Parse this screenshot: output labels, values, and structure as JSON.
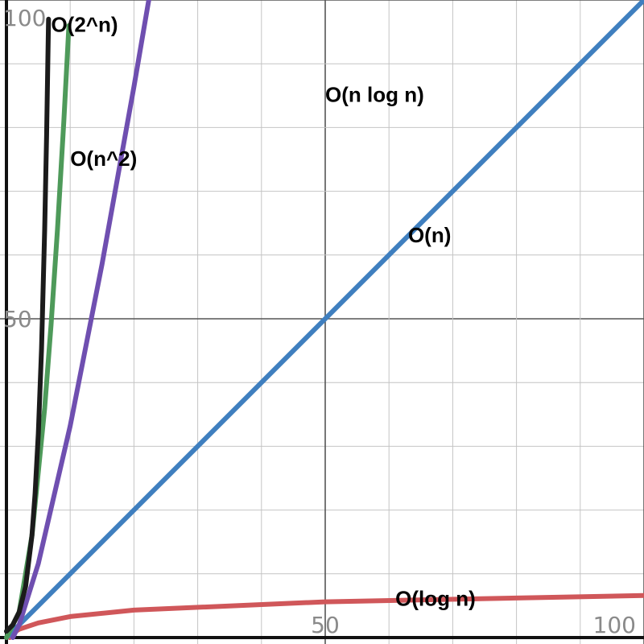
{
  "chart_data": {
    "type": "line",
    "title": "",
    "xlabel": "",
    "ylabel": "",
    "xlim": [
      0,
      100
    ],
    "ylim": [
      0,
      100
    ],
    "grid": true,
    "x_ticks": [
      {
        "value": 50,
        "label": "50"
      },
      {
        "value": 100,
        "label": "100"
      }
    ],
    "y_ticks": [
      {
        "value": 50,
        "label": "50"
      },
      {
        "value": 100,
        "label": "100"
      }
    ],
    "series": [
      {
        "name": "O(2^n)",
        "color": "#1b1b1b",
        "points": [
          [
            0,
            1
          ],
          [
            1,
            2
          ],
          [
            2,
            4
          ],
          [
            3,
            8
          ],
          [
            4,
            16
          ],
          [
            4.5,
            22.6
          ],
          [
            5,
            32
          ],
          [
            5.5,
            45.3
          ],
          [
            6,
            64
          ],
          [
            6.3,
            78.8
          ],
          [
            6.6,
            97
          ]
        ]
      },
      {
        "name": "O(n^2)",
        "color": "#4e9a5a",
        "points": [
          [
            0,
            0
          ],
          [
            2,
            4
          ],
          [
            4,
            16
          ],
          [
            6,
            36
          ],
          [
            7,
            49
          ],
          [
            8,
            64
          ],
          [
            9,
            81
          ],
          [
            9.8,
            96
          ]
        ]
      },
      {
        "name": "O(n log n)",
        "color": "#6f4fb0",
        "points": [
          [
            1,
            0
          ],
          [
            2,
            2
          ],
          [
            5,
            11.6
          ],
          [
            10,
            33.2
          ],
          [
            15,
            58.6
          ],
          [
            20,
            86.4
          ],
          [
            22.7,
            102.2
          ]
        ]
      },
      {
        "name": "O(n)",
        "color": "#3f7fbf",
        "points": [
          [
            0,
            0
          ],
          [
            100,
            100
          ]
        ]
      },
      {
        "name": "O(log n)",
        "color": "#d0575a",
        "points": [
          [
            0.5,
            0
          ],
          [
            1,
            0.7
          ],
          [
            2,
            1.3
          ],
          [
            5,
            2.3
          ],
          [
            10,
            3.3
          ],
          [
            20,
            4.3
          ],
          [
            50,
            5.6
          ],
          [
            100,
            6.6
          ]
        ]
      }
    ],
    "annotations": [
      {
        "text": "O(2^n)",
        "x": 7,
        "y": 95
      },
      {
        "text": "O(n^2)",
        "x": 10,
        "y": 74
      },
      {
        "text": "O(n log n)",
        "x": 50,
        "y": 84
      },
      {
        "text": "O(n)",
        "x": 63,
        "y": 62
      },
      {
        "text": "O(log n)",
        "x": 61,
        "y": 5
      }
    ]
  }
}
